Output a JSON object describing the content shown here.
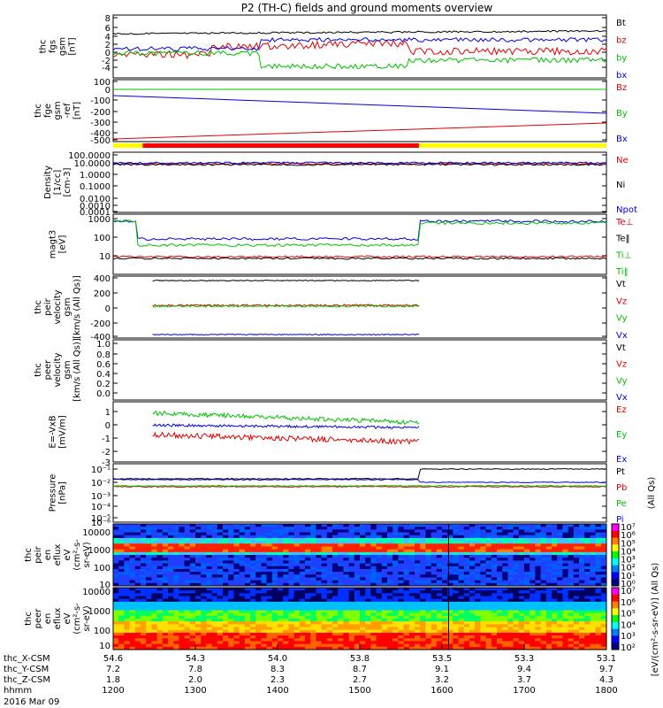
{
  "chart_data": {
    "type": "line",
    "title": "P2 (TH-C) fields and ground moments overview",
    "date_label": "2016 Mar 09",
    "x_ticks": [
      "1200",
      "1300",
      "1400",
      "1500",
      "1600",
      "1700",
      "1800"
    ],
    "bottom_axis": {
      "row_labels": [
        "thc_X-CSM",
        "thc_Y-CSM",
        "thc_Z-CSM",
        "hhmm"
      ],
      "rows": [
        [
          "54.6",
          "54.3",
          "54.0",
          "53.8",
          "53.5",
          "53.3",
          "53.1"
        ],
        [
          "7.2",
          "7.8",
          "8.3",
          "8.7",
          "9.1",
          "9.4",
          "9.7"
        ],
        [
          "1.8",
          "2.0",
          "2.3",
          "2.7",
          "3.2",
          "3.7",
          "4.3"
        ],
        [
          "1200",
          "1300",
          "1400",
          "1500",
          "1600",
          "1700",
          "1800"
        ]
      ]
    },
    "status_bar": {
      "segments": [
        {
          "color": "#ffff00",
          "start": 0.0,
          "end": 0.06
        },
        {
          "color": "#ff0000",
          "start": 0.06,
          "end": 0.62
        },
        {
          "color": "#ffff00",
          "start": 0.62,
          "end": 1.0
        }
      ]
    },
    "panels": [
      {
        "id": "fgs",
        "ylabel": [
          "thc",
          "fgs",
          "gsm",
          "[nT]"
        ],
        "ticks": [
          "8",
          "6",
          "4",
          "2",
          "0",
          "-2",
          "-4"
        ],
        "legend": [
          {
            "text": "Bt",
            "color": "#000000"
          },
          {
            "text": "bz",
            "color": "#e00000"
          },
          {
            "text": "by",
            "color": "#00c000"
          },
          {
            "text": "bx",
            "color": "#0000e0"
          }
        ]
      },
      {
        "id": "fge",
        "ylabel": [
          "thc",
          "fge",
          "gsm",
          "-ref",
          "[nT]"
        ],
        "ticks": [
          "100",
          "0",
          "-100",
          "-200",
          "-300",
          "-400",
          "-500"
        ],
        "legend": [
          {
            "text": "Bz",
            "color": "#e00000"
          },
          {
            "text": "By",
            "color": "#00c000"
          },
          {
            "text": "Bx",
            "color": "#0000e0"
          }
        ]
      },
      {
        "id": "density",
        "ylabel": [
          "Density",
          "[1/cc]",
          "[cm-3]"
        ],
        "ticks": [
          "100.0000",
          "10.0000",
          "1.0000",
          "0.1000",
          "0.0100",
          "0.0010",
          "0.0001"
        ],
        "legend": [
          {
            "text": "Ne",
            "color": "#e00000"
          },
          {
            "text": "Ni",
            "color": "#000000"
          },
          {
            "text": "Npot",
            "color": "#0000e0"
          }
        ]
      },
      {
        "id": "temp",
        "ylabel": [
          "magt3",
          "[eV]"
        ],
        "ticks": [
          "1000",
          "100",
          "10"
        ],
        "legend": [
          {
            "text": "Te⊥",
            "color": "#e00000"
          },
          {
            "text": "Te‖",
            "color": "#000000"
          },
          {
            "text": "Ti⊥",
            "color": "#00c000"
          },
          {
            "text": "Ti‖",
            "color": "#00c000"
          }
        ]
      },
      {
        "id": "peir_v",
        "ylabel": [
          "thc",
          "peir",
          "velocity",
          "gsm",
          "[km/s (All Qs)]"
        ],
        "ticks": [
          "400",
          "200",
          "0",
          "-200",
          "-400"
        ],
        "legend": [
          {
            "text": "Vt",
            "color": "#000000"
          },
          {
            "text": "Vz",
            "color": "#e00000"
          },
          {
            "text": "Vy",
            "color": "#00c000"
          },
          {
            "text": "Vx",
            "color": "#0000e0"
          }
        ]
      },
      {
        "id": "peer_v",
        "ylabel": [
          "thc",
          "peer",
          "velocity",
          "gsm",
          "[km/s (All Qs)]"
        ],
        "ticks": [
          "1.0",
          "0.8",
          "0.6",
          "0.4",
          "0.2",
          "0.0"
        ],
        "legend": [
          {
            "text": "Vt",
            "color": "#000000"
          },
          {
            "text": "Vz",
            "color": "#e00000"
          },
          {
            "text": "Vy",
            "color": "#00c000"
          },
          {
            "text": "Vx",
            "color": "#0000e0"
          }
        ]
      },
      {
        "id": "efield",
        "ylabel": [
          "E=-VxB",
          "[mV/m]"
        ],
        "ticks": [
          "1",
          "0",
          "-1",
          "-2",
          "-3"
        ],
        "legend": [
          {
            "text": "Ez",
            "color": "#e00000"
          },
          {
            "text": "Ey",
            "color": "#00c000"
          },
          {
            "text": "Ex",
            "color": "#0000e0"
          }
        ]
      },
      {
        "id": "pressure",
        "ylabel": [
          "Pressure",
          "[nPa]"
        ],
        "ticks": [
          "10⁻¹",
          "10⁻²",
          "10⁻³",
          "10⁻⁴",
          "10⁻⁵",
          "10⁻⁶"
        ],
        "extra_label": "(All Qs)",
        "legend": [
          {
            "text": "Pt",
            "color": "#000000"
          },
          {
            "text": "Pb",
            "color": "#e00000"
          },
          {
            "text": "Pe",
            "color": "#00c000"
          },
          {
            "text": "Pi",
            "color": "#0000e0"
          }
        ]
      },
      {
        "id": "peir_spec",
        "ylabel": [
          "thc",
          "peir",
          "en",
          "eflux",
          "eV",
          "(cm²-s-",
          "sr-eV)"
        ],
        "ticks": [
          "10000",
          "1000",
          "100",
          "10"
        ]
      },
      {
        "id": "peer_spec",
        "ylabel": [
          "thc",
          "peer",
          "en",
          "eflux",
          "eV",
          "(cm²-s-",
          "sr-eV)"
        ],
        "ticks": [
          "10000",
          "1000",
          "100",
          "10"
        ]
      }
    ],
    "colorbars": [
      {
        "label": "[eV/(cm²-s-sr-eV)] (All Qs)",
        "ticks": [
          "10⁷",
          "10⁶",
          "10⁵",
          "10⁴",
          "10³",
          "10²",
          "10¹",
          "10⁰"
        ]
      },
      {
        "label": "[eV/(cm²-s-sr-eV)]",
        "ticks": [
          "10⁷",
          "10⁶",
          "10⁵",
          "10⁴",
          "10³",
          "10²"
        ]
      }
    ]
  }
}
